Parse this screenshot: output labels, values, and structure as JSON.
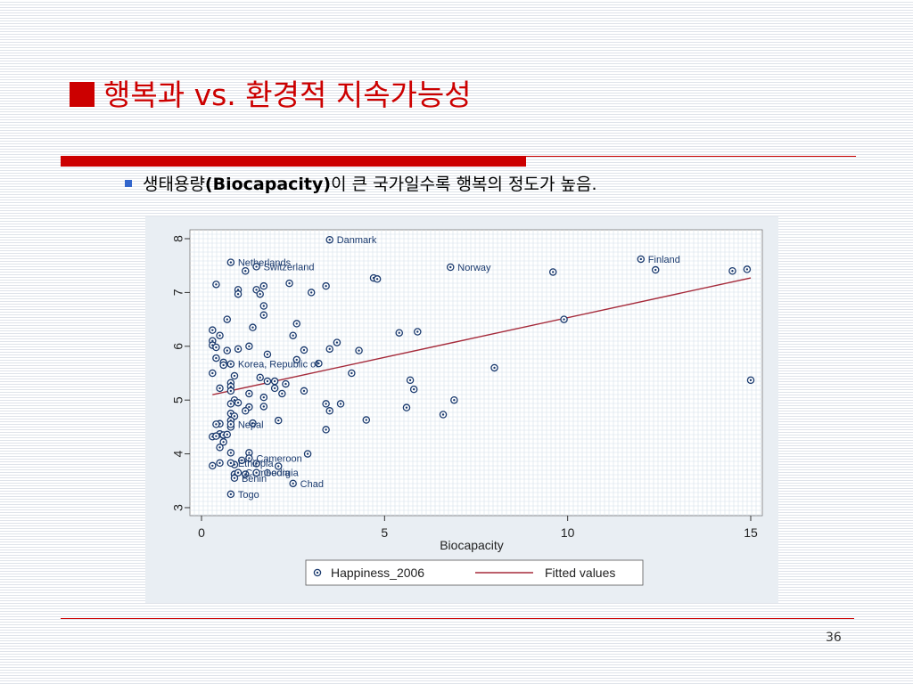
{
  "slide": {
    "title": "행복과 vs. 환경적 지속가능성",
    "bullet_prefix": "생태용량",
    "bullet_bold": "(Biocapacity)",
    "bullet_suffix": "이 큰 국가일수록 행복의 정도가 높음.",
    "page_number": "36"
  },
  "colors": {
    "accent": "#cc0000",
    "marker": "#1a3a6e",
    "fit_line": "#a52a3a",
    "bullet": "#3366cc"
  },
  "chart_data": {
    "type": "scatter",
    "xlabel": "Biocapacity",
    "ylabel": "",
    "xlim": [
      0,
      15
    ],
    "ylim": [
      3,
      8
    ],
    "xticks": [
      "0",
      "5",
      "10",
      "15"
    ],
    "yticks": [
      "3",
      "4",
      "5",
      "6",
      "7",
      "8"
    ],
    "legend": {
      "placement": "bottom",
      "entries": [
        "Happiness_2006",
        "Fitted values"
      ]
    },
    "grid": true,
    "fit_line": {
      "x": [
        0.3,
        15.0
      ],
      "y": [
        5.1,
        7.27
      ]
    },
    "labeled_points": [
      {
        "label": "Danmark",
        "x": 3.5,
        "y": 7.98
      },
      {
        "label": "Finland",
        "x": 12.0,
        "y": 7.62
      },
      {
        "label": "Netherlands",
        "x": 0.8,
        "y": 7.56
      },
      {
        "label": "Switzerland",
        "x": 1.5,
        "y": 7.48
      },
      {
        "label": "Norway",
        "x": 6.8,
        "y": 7.47
      },
      {
        "label": "Korea, Republic of",
        "x": 0.8,
        "y": 5.67
      },
      {
        "label": "Nepal",
        "x": 0.8,
        "y": 4.55
      },
      {
        "label": "Cameroon",
        "x": 1.3,
        "y": 3.92
      },
      {
        "label": "Ethiopia",
        "x": 0.8,
        "y": 3.83
      },
      {
        "label": "Cambodia",
        "x": 1.0,
        "y": 3.65
      },
      {
        "label": "Georgia",
        "x": 1.5,
        "y": 3.65
      },
      {
        "label": "Benin",
        "x": 0.9,
        "y": 3.55
      },
      {
        "label": "Chad",
        "x": 2.5,
        "y": 3.45
      },
      {
        "label": "Togo",
        "x": 0.8,
        "y": 3.25
      }
    ],
    "points": [
      [
        0.4,
        7.15
      ],
      [
        1.0,
        7.05
      ],
      [
        1.0,
        6.97
      ],
      [
        1.2,
        7.4
      ],
      [
        1.5,
        7.05
      ],
      [
        1.6,
        6.97
      ],
      [
        1.7,
        7.12
      ],
      [
        2.4,
        7.17
      ],
      [
        3.0,
        7.0
      ],
      [
        3.4,
        7.12
      ],
      [
        4.7,
        7.27
      ],
      [
        4.8,
        7.25
      ],
      [
        9.6,
        7.38
      ],
      [
        12.4,
        7.42
      ],
      [
        14.5,
        7.4
      ],
      [
        14.9,
        7.43
      ],
      [
        1.7,
        6.75
      ],
      [
        1.7,
        6.58
      ],
      [
        0.7,
        6.5
      ],
      [
        2.6,
        6.42
      ],
      [
        1.4,
        6.35
      ],
      [
        0.3,
        6.3
      ],
      [
        0.5,
        6.2
      ],
      [
        2.5,
        6.2
      ],
      [
        5.4,
        6.25
      ],
      [
        5.9,
        6.27
      ],
      [
        0.3,
        6.1
      ],
      [
        0.3,
        6.02
      ],
      [
        0.4,
        5.98
      ],
      [
        0.7,
        5.92
      ],
      [
        1.0,
        5.95
      ],
      [
        1.3,
        6.0
      ],
      [
        2.8,
        5.93
      ],
      [
        3.5,
        5.95
      ],
      [
        3.7,
        6.07
      ],
      [
        4.3,
        5.92
      ],
      [
        1.8,
        5.85
      ],
      [
        0.4,
        5.78
      ],
      [
        0.6,
        5.7
      ],
      [
        2.6,
        5.75
      ],
      [
        3.2,
        5.68
      ],
      [
        0.6,
        5.65
      ],
      [
        0.3,
        5.5
      ],
      [
        0.9,
        5.45
      ],
      [
        1.6,
        5.42
      ],
      [
        4.1,
        5.5
      ],
      [
        8.0,
        5.6
      ],
      [
        0.8,
        5.32
      ],
      [
        1.8,
        5.35
      ],
      [
        2.0,
        5.35
      ],
      [
        2.3,
        5.3
      ],
      [
        0.8,
        5.25
      ],
      [
        0.5,
        5.22
      ],
      [
        0.8,
        5.17
      ],
      [
        1.3,
        5.12
      ],
      [
        1.7,
        5.05
      ],
      [
        2.0,
        5.22
      ],
      [
        2.2,
        5.12
      ],
      [
        2.8,
        5.17
      ],
      [
        5.7,
        5.37
      ],
      [
        5.8,
        5.2
      ],
      [
        0.9,
        5.0
      ],
      [
        1.0,
        4.95
      ],
      [
        0.8,
        4.93
      ],
      [
        1.3,
        4.87
      ],
      [
        1.7,
        4.88
      ],
      [
        1.2,
        4.8
      ],
      [
        3.4,
        4.93
      ],
      [
        3.5,
        4.8
      ],
      [
        3.8,
        4.93
      ],
      [
        5.6,
        4.86
      ],
      [
        6.6,
        4.73
      ],
      [
        6.9,
        5.0
      ],
      [
        0.8,
        4.75
      ],
      [
        0.9,
        4.7
      ],
      [
        0.8,
        4.62
      ],
      [
        0.5,
        4.56
      ],
      [
        0.4,
        4.55
      ],
      [
        2.1,
        4.62
      ],
      [
        4.5,
        4.63
      ],
      [
        1.4,
        4.57
      ],
      [
        0.8,
        4.5
      ],
      [
        0.5,
        4.37
      ],
      [
        0.6,
        4.35
      ],
      [
        0.7,
        4.36
      ],
      [
        0.3,
        4.32
      ],
      [
        0.4,
        4.33
      ],
      [
        0.6,
        4.22
      ],
      [
        0.5,
        4.12
      ],
      [
        0.8,
        4.02
      ],
      [
        1.3,
        4.02
      ],
      [
        2.9,
        4.0
      ],
      [
        3.4,
        4.45
      ],
      [
        0.5,
        3.83
      ],
      [
        0.3,
        3.78
      ],
      [
        0.9,
        3.8
      ],
      [
        1.1,
        3.88
      ],
      [
        1.5,
        3.82
      ],
      [
        2.1,
        3.77
      ],
      [
        0.9,
        3.62
      ],
      [
        1.2,
        3.62
      ],
      [
        15.0,
        5.37
      ],
      [
        9.9,
        6.5
      ]
    ]
  }
}
